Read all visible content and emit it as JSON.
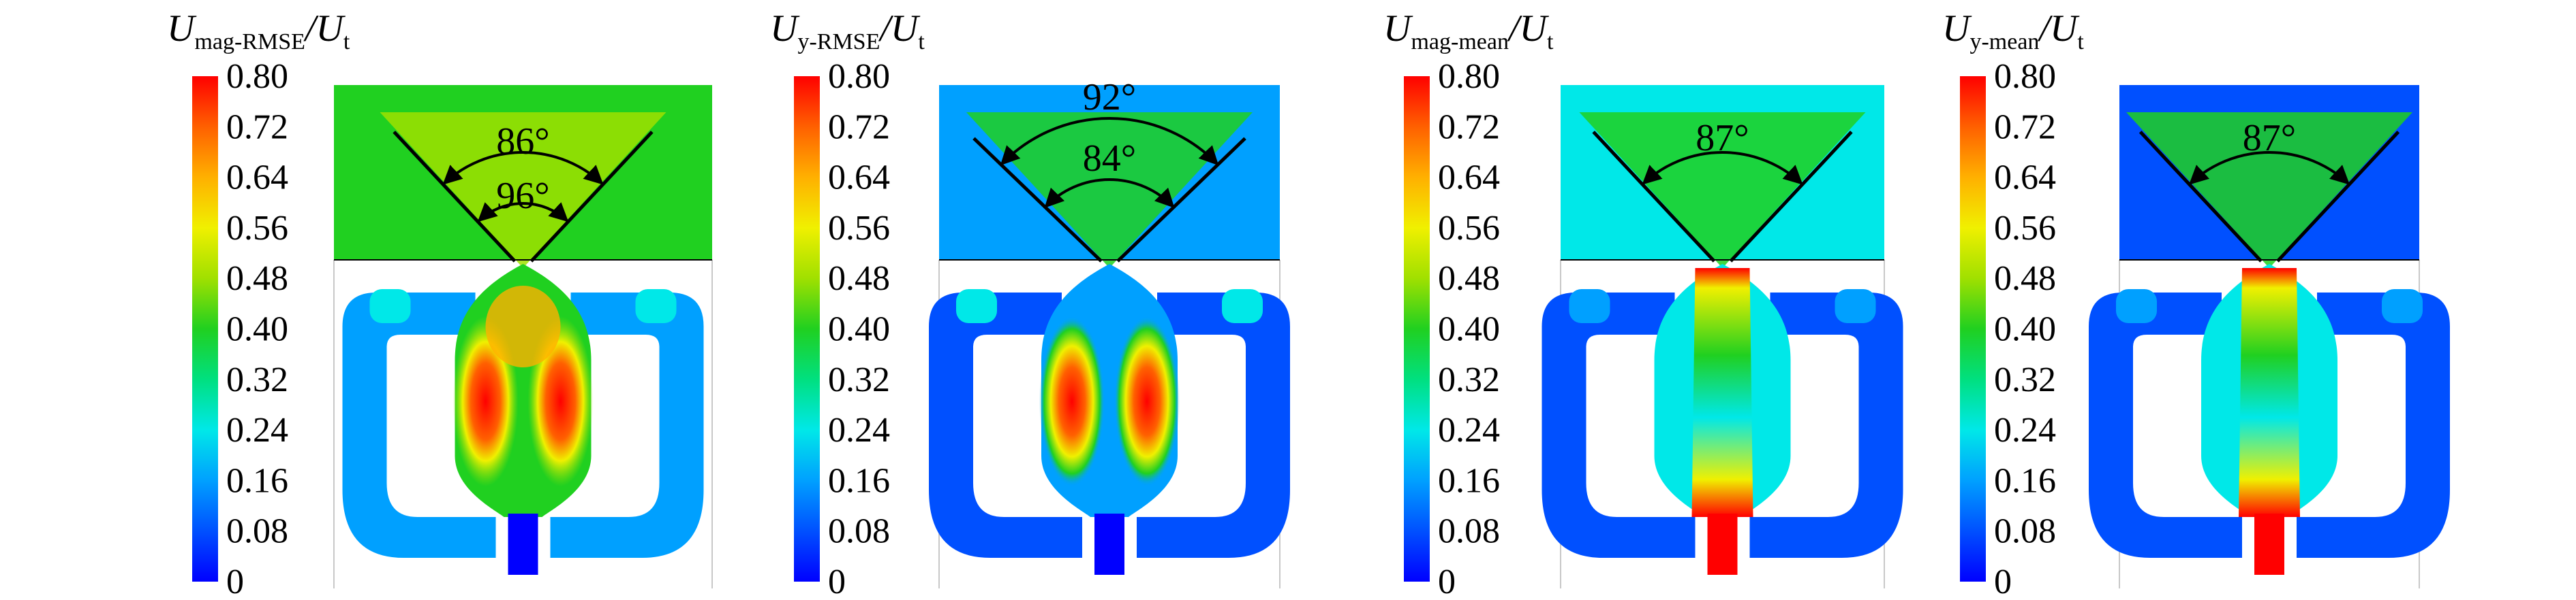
{
  "figure": {
    "panels": [
      {
        "id": "mag-rmse",
        "title_main": "U",
        "title_sub": "mag-RMSE",
        "title_tail": "/U",
        "title_tail_sub": "t",
        "colorbar_ticks": [
          "0.80",
          "0.72",
          "0.64",
          "0.56",
          "0.48",
          "0.40",
          "0.32",
          "0.24",
          "0.16",
          "0.08",
          "0"
        ],
        "angle_labels": [
          "86°",
          "96°"
        ],
        "field": "rmse_mag"
      },
      {
        "id": "y-rmse",
        "title_main": "U",
        "title_sub": "y-RMSE",
        "title_tail": "/U",
        "title_tail_sub": "t",
        "colorbar_ticks": [
          "0.80",
          "0.72",
          "0.64",
          "0.56",
          "0.48",
          "0.40",
          "0.32",
          "0.24",
          "0.16",
          "0.08",
          "0"
        ],
        "angle_labels": [
          "92°",
          "84°"
        ],
        "field": "rmse_y"
      },
      {
        "id": "mag-mean",
        "title_main": "U",
        "title_sub": "mag-mean",
        "title_tail": "/U",
        "title_tail_sub": "t",
        "colorbar_ticks": [
          "0.80",
          "0.72",
          "0.64",
          "0.56",
          "0.48",
          "0.40",
          "0.32",
          "0.24",
          "0.16",
          "0.08",
          "0"
        ],
        "angle_labels": [
          "87°"
        ],
        "field": "mean_mag"
      },
      {
        "id": "y-mean",
        "title_main": "U",
        "title_sub": "y-mean",
        "title_tail": "/U",
        "title_tail_sub": "t",
        "colorbar_ticks": [
          "0.80",
          "0.72",
          "0.64",
          "0.56",
          "0.48",
          "0.40",
          "0.32",
          "0.24",
          "0.16",
          "0.08",
          "0"
        ],
        "angle_labels": [
          "87°"
        ],
        "field": "mean_y"
      }
    ],
    "colormap": [
      "#0000ff",
      "#0050ff",
      "#00a0ff",
      "#00e8e8",
      "#00e080",
      "#20d020",
      "#a0e000",
      "#f0f000",
      "#ffb000",
      "#ff6000",
      "#ff0000"
    ]
  }
}
